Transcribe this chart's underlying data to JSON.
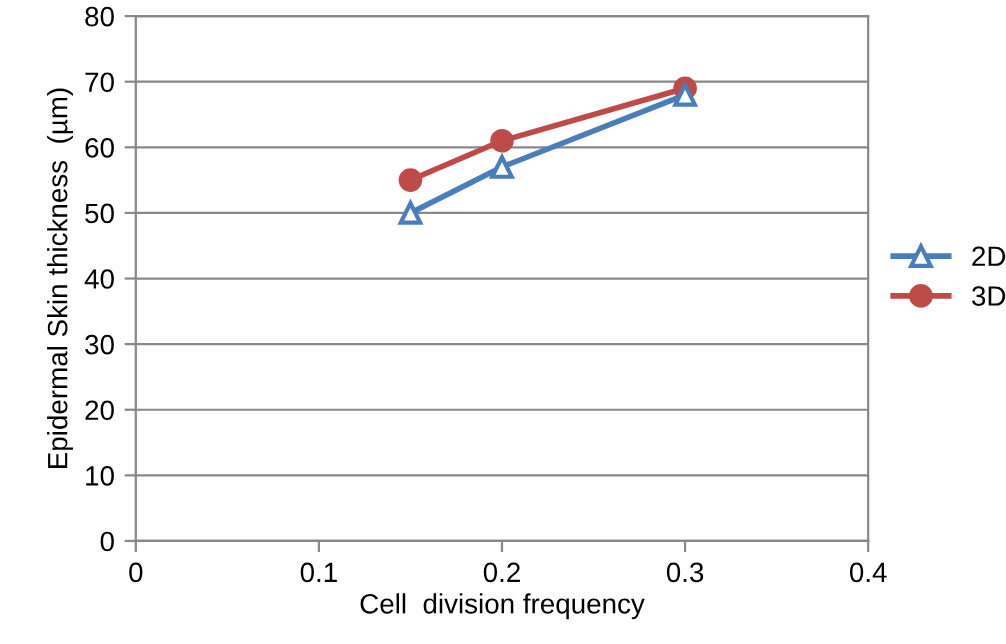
{
  "chart_data": {
    "type": "line",
    "xlabel": "Cell  division frequency",
    "ylabel": "Epidermal Skin thickness  (µm)",
    "xlim": [
      0,
      0.4
    ],
    "xticks": [
      0,
      0.1,
      0.2,
      0.3,
      0.4
    ],
    "ylim": [
      0,
      80
    ],
    "yticks": [
      0,
      10,
      20,
      30,
      40,
      50,
      60,
      70,
      80
    ],
    "grid": "y",
    "legend": "right",
    "line_style": "solid",
    "series": [
      {
        "name": "2D",
        "color": "#4a7ebb",
        "marker": "triangle",
        "x": [
          0.15,
          0.2,
          0.3
        ],
        "values": [
          50,
          57,
          68
        ]
      },
      {
        "name": "3D",
        "color": "#be4b48",
        "marker": "circle",
        "x": [
          0.15,
          0.2,
          0.3
        ],
        "values": [
          55,
          61,
          69
        ]
      }
    ]
  }
}
